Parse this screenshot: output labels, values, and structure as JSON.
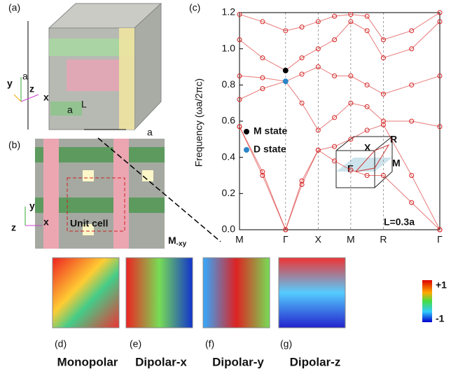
{
  "panels": {
    "a": {
      "label": "(a)",
      "dims": [
        "a",
        "a",
        "a",
        "L"
      ],
      "axes": [
        "z",
        "y",
        "x"
      ]
    },
    "b": {
      "label": "(b)",
      "unit_cell": "Unit cell",
      "direction": "M",
      "direction_sub": "-xy",
      "axes": [
        "y",
        "z",
        "x"
      ]
    },
    "modes": [
      {
        "label": "(d)",
        "name": "Monopolar"
      },
      {
        "label": "(e)",
        "name": "Dipolar-x"
      },
      {
        "label": "(f)",
        "name": "Dipolar-y"
      },
      {
        "label": "(g)",
        "name": "Dipolar-z"
      }
    ],
    "colorbar": {
      "max": "+1",
      "min": "-1"
    }
  },
  "chart_data": {
    "type": "scatter",
    "panel_label": "(c)",
    "y_label": "Frequency (ωa/2πc)",
    "annotation": "L=0.3a",
    "inset_labels": [
      "Γ",
      "X",
      "M",
      "R"
    ],
    "x": [
      0,
      0.707,
      1.414,
      1.914,
      2.414,
      2.914,
      3.414,
      3.914,
      4.414,
      5.28,
      6.146
    ],
    "xlim": [
      0,
      6.146
    ],
    "xticks": [
      {
        "value": 0,
        "label": "M"
      },
      {
        "value": 1.414,
        "label": "Γ"
      },
      {
        "value": 2.414,
        "label": "X"
      },
      {
        "value": 3.414,
        "label": "M"
      },
      {
        "value": 4.414,
        "label": "R"
      },
      {
        "value": 6.146,
        "label": "Γ"
      }
    ],
    "ylim": [
      0,
      1.2
    ],
    "yticks": [
      {
        "value": 0,
        "label": "0.0"
      },
      0.2,
      0.4,
      0.6,
      0.8,
      {
        "value": 1,
        "label": "1.0"
      },
      {
        "value": 1.2,
        "label": "1.2"
      }
    ],
    "color": "#d62020",
    "series": [
      {
        "values": [
          0.57,
          0.3,
          0,
          0.25,
          0.44,
          0.38,
          0.33,
          0.3,
          0.3,
          0.15,
          0
        ]
      },
      {
        "values": [
          0.57,
          0.32,
          0,
          0.27,
          0.44,
          0.46,
          0.5,
          0.55,
          0.58,
          0.3,
          0
        ]
      },
      {
        "values": [
          0.72,
          0.78,
          0.82,
          0.7,
          0.55,
          0.62,
          0.7,
          0.68,
          0.6,
          0.6,
          0.57
        ]
      },
      {
        "values": [
          0.85,
          0.84,
          0.82,
          0.86,
          0.9,
          0.85,
          0.85,
          0.8,
          0.75,
          0.8,
          0.85
        ]
      },
      {
        "values": [
          1.05,
          0.95,
          0.88,
          0.95,
          1,
          1.05,
          1.15,
          1.1,
          0.95,
          1,
          1.15
        ]
      },
      {
        "values": [
          1.19,
          1.15,
          1.1,
          1.12,
          1.15,
          1.18,
          1.19,
          1.18,
          1.05,
          1.1,
          1.2
        ]
      }
    ],
    "highlights": [
      {
        "name": "M state",
        "color": "#000000",
        "x": 1.414,
        "value": 0.88
      },
      {
        "name": "D state",
        "color": "#2a86c8",
        "x": 1.414,
        "value": 0.82
      }
    ]
  }
}
